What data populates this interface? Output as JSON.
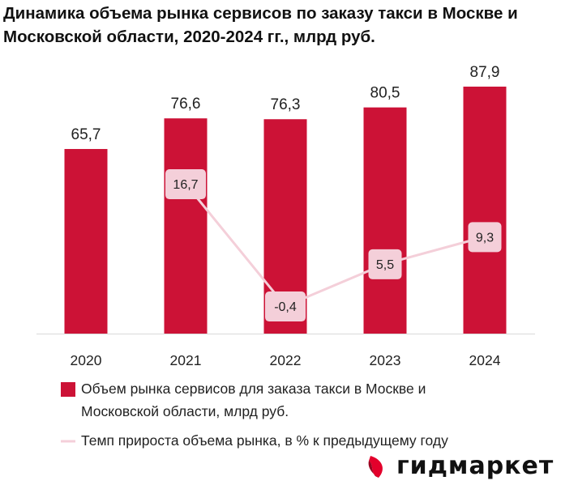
{
  "chart_data": {
    "type": "bar+line",
    "title": "Динамика объема рынка сервисов по заказу такси в Москве и Московской области, 2020-2024 гг., млрд руб.",
    "categories": [
      "2020",
      "2021",
      "2022",
      "2023",
      "2024"
    ],
    "series": [
      {
        "name": "Объем рынка сервисов для заказа такси в Москве и Московской области, млрд руб.",
        "type": "bar",
        "color": "#cc1236",
        "values": [
          65.7,
          76.6,
          76.3,
          80.5,
          87.9
        ],
        "labels": [
          "65,7",
          "76,6",
          "76,3",
          "80,5",
          "87,9"
        ]
      },
      {
        "name": "Темп прироста объема рынка, в % к предыдущему году",
        "type": "line",
        "color": "#f4cfd9",
        "values": [
          null,
          16.7,
          -0.4,
          5.5,
          9.3
        ],
        "labels": [
          "",
          "16,7",
          "-0,4",
          "5,5",
          "9,3"
        ]
      }
    ],
    "legend": "bottom",
    "grid": false
  },
  "legend": {
    "bar_line1": "Объем рынка сервисов для заказа такси в Москве и",
    "bar_line2": "Московской области, млрд руб.",
    "line": "Темп прироста объема рынка, в % к предыдущему году"
  },
  "logo": {
    "text": "гидмаркет",
    "color": "#e3002b"
  }
}
